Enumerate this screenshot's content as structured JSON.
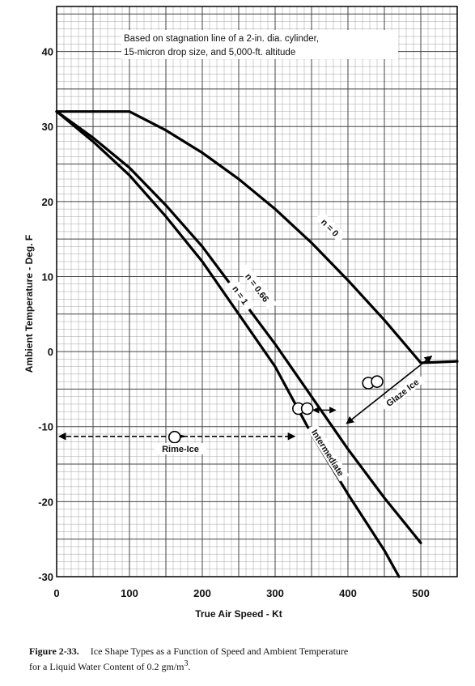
{
  "chart_data": {
    "type": "line",
    "xlabel": "True Air Speed - Kt",
    "ylabel": "Ambient Temperature - Deg. F",
    "xlim": [
      0,
      550
    ],
    "ylim": [
      -30,
      46
    ],
    "x_ticks": [
      "0",
      "100",
      "200",
      "300",
      "400",
      "500"
    ],
    "y_ticks": [
      "40",
      "30",
      "20",
      "10",
      "0",
      "-10",
      "-20",
      "-30"
    ],
    "note_lines": [
      "Based on stagnation line of a 2-in. dia. cylinder,",
      "15-micron drop size, and 5,000-ft. altitude"
    ],
    "grid": true,
    "series": [
      {
        "name": "n = 0",
        "x": [
          0,
          100,
          150,
          200,
          250,
          300,
          350,
          400,
          450,
          500,
          550
        ],
        "y": [
          32,
          32,
          29.5,
          26.5,
          23,
          19,
          14.5,
          9.5,
          4.2,
          -1.5,
          -1.3
        ]
      },
      {
        "name": "n = 0.66",
        "x": [
          0,
          50,
          100,
          150,
          200,
          250,
          300,
          350,
          400,
          450,
          500
        ],
        "y": [
          32,
          28.5,
          24.5,
          19.5,
          14,
          7.5,
          1,
          -6,
          -13,
          -19.5,
          -25.5
        ]
      },
      {
        "name": "n = 1",
        "x": [
          0,
          50,
          100,
          150,
          200,
          250,
          300,
          350,
          400,
          450,
          470
        ],
        "y": [
          32,
          28,
          23.5,
          18,
          12,
          5,
          -2,
          -11,
          -19,
          -26.5,
          -30
        ]
      }
    ],
    "annotations": [
      {
        "label": "Rime-Ice",
        "x": 170,
        "y": -11.3
      },
      {
        "label": "Intermediate",
        "x": 372,
        "y": -13.5
      },
      {
        "label": "Glaze Ice",
        "x": 475,
        "y": -5.5
      }
    ]
  },
  "caption": {
    "figure_number": "Figure 2-33.",
    "line1": "Ice Shape Types as a Function of Speed and Ambient Temperature",
    "line2_prefix": "for a Liquid Water Content of 0.2 gm/m",
    "line2_sup": "3",
    "line2_suffix": "."
  }
}
